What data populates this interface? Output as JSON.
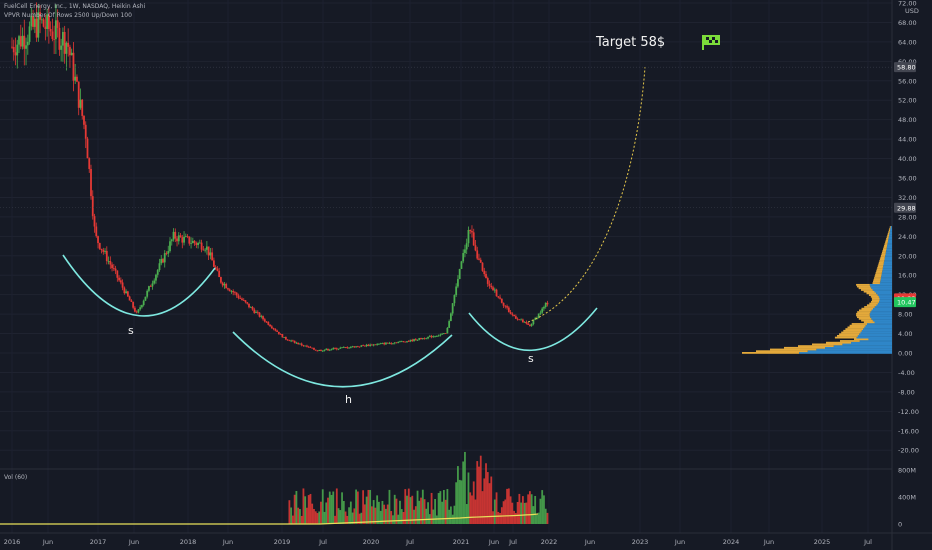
{
  "header": {
    "symbol_line": "FuelCell Energy, Inc., 1W, NASDAQ, Heikin Ashi",
    "indicator_line": "VPVR Number Of Rows 2500 Up/Down 100"
  },
  "volume_label": "Vol (60)",
  "annotations": {
    "target_text": "Target 58$",
    "flag_icon": "checkered-flag-icon",
    "left_shoulder": "s",
    "head": "h",
    "right_shoulder": "s"
  },
  "colors": {
    "background": "#161a25",
    "up": "#4caf50",
    "down": "#e53935",
    "neckline": "#7ee8e0",
    "target_path": "#e6c84a",
    "vol_ma": "#e8e05a",
    "profile_up": "#2f86c8",
    "profile_down": "#e3a93b",
    "flag": "#7cdc3a"
  },
  "chart_data": {
    "type": "candlestick",
    "title": "",
    "price_axis": {
      "unit": "USD",
      "ticks": [
        "72.00",
        "68.00",
        "64.00",
        "60.00",
        "56.00",
        "52.00",
        "48.00",
        "44.00",
        "40.00",
        "36.00",
        "32.00",
        "28.00",
        "24.00",
        "20.00",
        "16.00",
        "12.00",
        "8.00",
        "4.00",
        "0.00",
        "-4.00",
        "-8.00",
        "-12.00",
        "-16.00",
        "-20.00"
      ],
      "ylim": [
        -24,
        74
      ]
    },
    "price_labels": [
      {
        "value": "58.80",
        "color": "#434651"
      },
      {
        "value": "29.88",
        "color": "#434651"
      },
      {
        "value": "11.23",
        "color": "#e53935"
      },
      {
        "value": "10.47",
        "color": "#22c55e"
      }
    ],
    "time_axis": {
      "ticks": [
        "2016",
        "Jun",
        "2017",
        "Jun",
        "2018",
        "Jun",
        "2019",
        "Jul",
        "2020",
        "Jul",
        "2021",
        "Jun",
        "Jul",
        "2022",
        "Jun",
        "2023",
        "Jun",
        "2024",
        "Jun",
        "2025",
        "Jul"
      ]
    },
    "volume_axis": {
      "ticks": [
        "800M",
        "400M",
        "0"
      ]
    },
    "series": [
      {
        "t": 2016.0,
        "price": 63
      },
      {
        "t": 2016.3,
        "price": 68
      },
      {
        "t": 2016.6,
        "price": 64
      },
      {
        "t": 2016.8,
        "price": 45
      },
      {
        "t": 2016.9,
        "price": 24
      },
      {
        "t": 2017.1,
        "price": 17
      },
      {
        "t": 2017.35,
        "price": 8
      },
      {
        "t": 2017.55,
        "price": 16
      },
      {
        "t": 2017.75,
        "price": 24
      },
      {
        "t": 2018.1,
        "price": 22
      },
      {
        "t": 2018.25,
        "price": 15
      },
      {
        "t": 2018.6,
        "price": 9
      },
      {
        "t": 2018.95,
        "price": 3
      },
      {
        "t": 2019.3,
        "price": 0.5
      },
      {
        "t": 2019.8,
        "price": 1.5
      },
      {
        "t": 2020.3,
        "price": 2.5
      },
      {
        "t": 2020.7,
        "price": 4
      },
      {
        "t": 2020.95,
        "price": 26
      },
      {
        "t": 2021.1,
        "price": 16
      },
      {
        "t": 2021.4,
        "price": 8
      },
      {
        "t": 2021.6,
        "price": 5.5
      },
      {
        "t": 2021.8,
        "price": 10.5
      }
    ],
    "target_projection": {
      "from_price": 10.5,
      "to_price": 58.8
    },
    "pattern": "head and shoulders (inverse)"
  }
}
